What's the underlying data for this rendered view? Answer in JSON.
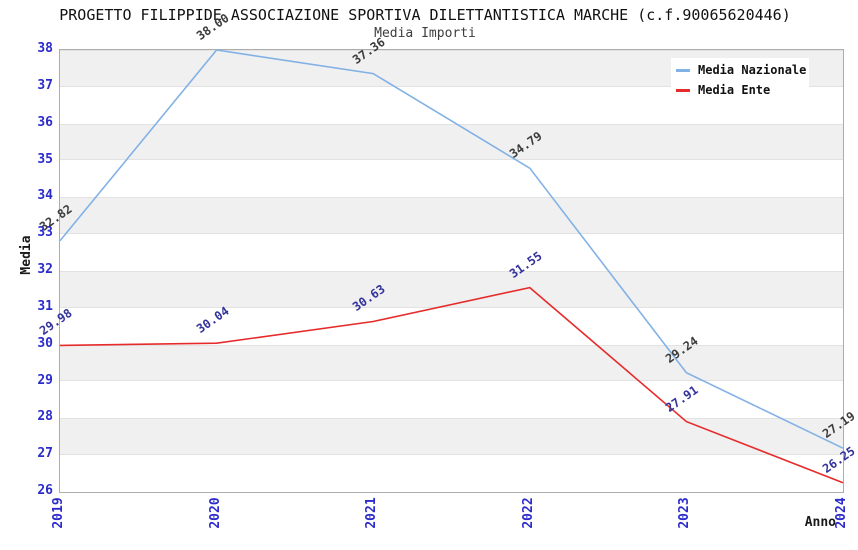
{
  "chart_data": {
    "type": "line",
    "title": "PROGETTO FILIPPIDE ASSOCIAZIONE SPORTIVA DILETTANTISTICA MARCHE (c.f.90065620446)",
    "subtitle": "Media Importi",
    "xlabel": "Anno",
    "ylabel": "Media",
    "categories": [
      "2019",
      "2020",
      "2021",
      "2022",
      "2023",
      "2024"
    ],
    "ylim": [
      26,
      38
    ],
    "yticks": [
      26,
      27,
      28,
      29,
      30,
      31,
      32,
      33,
      34,
      35,
      36,
      37,
      38
    ],
    "grid": "alternating horizontal gray bands on odd intervals",
    "legend_position": "top-right",
    "series": [
      {
        "name": "Media Nazionale",
        "color": "#82b1e6",
        "values": [
          32.82,
          38.0,
          37.36,
          34.79,
          29.24,
          27.19
        ],
        "value_labels": [
          "32.82",
          "38.00",
          "37.36",
          "34.79",
          "29.24",
          "27.19"
        ],
        "label_color": "#3c3c3c"
      },
      {
        "name": "Media Ente",
        "color": "#e62b2b",
        "values": [
          29.98,
          30.04,
          30.63,
          31.55,
          27.91,
          26.25
        ],
        "value_labels": [
          "29.98",
          "30.04",
          "30.63",
          "31.55",
          "27.91",
          "26.25"
        ],
        "label_color": "#33339b"
      }
    ],
    "colors": {
      "tick_label": "#2b2bcc",
      "band": "#f0f0f0",
      "plot_border": "#adadad",
      "background": "#ffffff"
    }
  }
}
